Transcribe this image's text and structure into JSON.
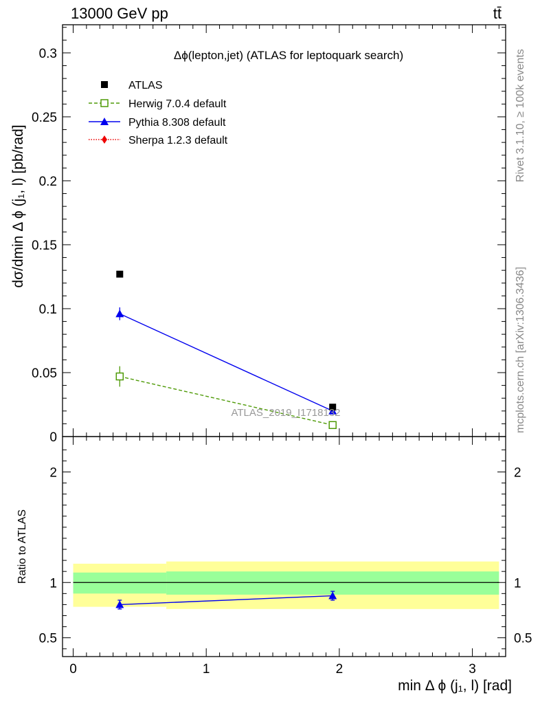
{
  "header": {
    "left": "13000 GeV pp",
    "right": "tt̄"
  },
  "side_text": {
    "rivet": "Rivet 3.1.10, ≥ 100k events",
    "mcplots": "mcplots.cern.ch [arXiv:1306.3436]"
  },
  "watermark": "ATLAS_2019_I1718132",
  "chart_data": [
    {
      "type": "scatter",
      "title": "Δϕ(lepton,jet) (ATLAS for leptoquark search)",
      "ylabel": "dσ/dmin Δ ϕ (j₁, l) [pb/rad]",
      "xlim": [
        -0.08,
        3.25
      ],
      "ylim": [
        0,
        0.322
      ],
      "y_ticks": [
        "0",
        "0.05",
        "0.1",
        "0.15",
        "0.2",
        "0.25",
        "0.3"
      ],
      "y_tick_values": [
        0,
        0.05,
        0.1,
        0.15,
        0.2,
        0.25,
        0.3
      ],
      "legend_position": "top-left",
      "series": [
        {
          "name": "ATLAS",
          "color": "#000000",
          "marker": "filled-square",
          "line": "none",
          "x": [
            0.35,
            1.95
          ],
          "y": [
            0.127,
            0.023
          ],
          "xerr": [
            [
              0.0,
              0.7
            ],
            [
              0.7,
              3.2
            ]
          ],
          "yerr": [
            0.0,
            0.0
          ]
        },
        {
          "name": "Herwig 7.0.4 default",
          "color": "#4e9a06",
          "marker": "open-square",
          "line": "dashed",
          "x": [
            0.35,
            1.95
          ],
          "y": [
            0.047,
            0.009
          ],
          "yerr": [
            0.008,
            0.001
          ]
        },
        {
          "name": "Pythia 8.308 default",
          "color": "#0000ee",
          "marker": "filled-triangle",
          "line": "solid",
          "x": [
            0.35,
            1.95
          ],
          "y": [
            0.096,
            0.02
          ],
          "yerr": [
            0.005,
            0.001
          ]
        },
        {
          "name": "Sherpa 1.2.3 default",
          "color": "#ee0000",
          "marker": "filled-diamond",
          "line": "dotted",
          "x": [],
          "y": []
        }
      ]
    },
    {
      "type": "scatter",
      "title": "",
      "xlabel": "min Δ ϕ (j₁, l) [rad]",
      "ylabel": "Ratio to ATLAS",
      "xlim": [
        -0.08,
        3.25
      ],
      "ylim": [
        0.33,
        2.32
      ],
      "x_ticks": [
        "0",
        "1",
        "2",
        "3"
      ],
      "x_tick_values": [
        0,
        1,
        2,
        3
      ],
      "y_ticks": [
        "0.5",
        "1",
        "2"
      ],
      "y_tick_values": [
        0.5,
        1,
        2
      ],
      "reference_line": 1,
      "bands": {
        "bins": [
          [
            0.0,
            0.7
          ],
          [
            0.7,
            3.2
          ]
        ],
        "stat": {
          "color": "#99ff99",
          "lo": [
            0.9,
            0.89
          ],
          "hi": [
            1.09,
            1.1
          ]
        },
        "total": {
          "color": "#ffff99",
          "lo": [
            0.78,
            0.76
          ],
          "hi": [
            1.17,
            1.19
          ]
        }
      },
      "series": [
        {
          "name": "Pythia 8.308 default",
          "color": "#0000ee",
          "x": [
            0.35,
            1.95
          ],
          "y": [
            0.8,
            0.88
          ],
          "yerr": [
            0.04,
            0.04
          ]
        }
      ]
    }
  ]
}
